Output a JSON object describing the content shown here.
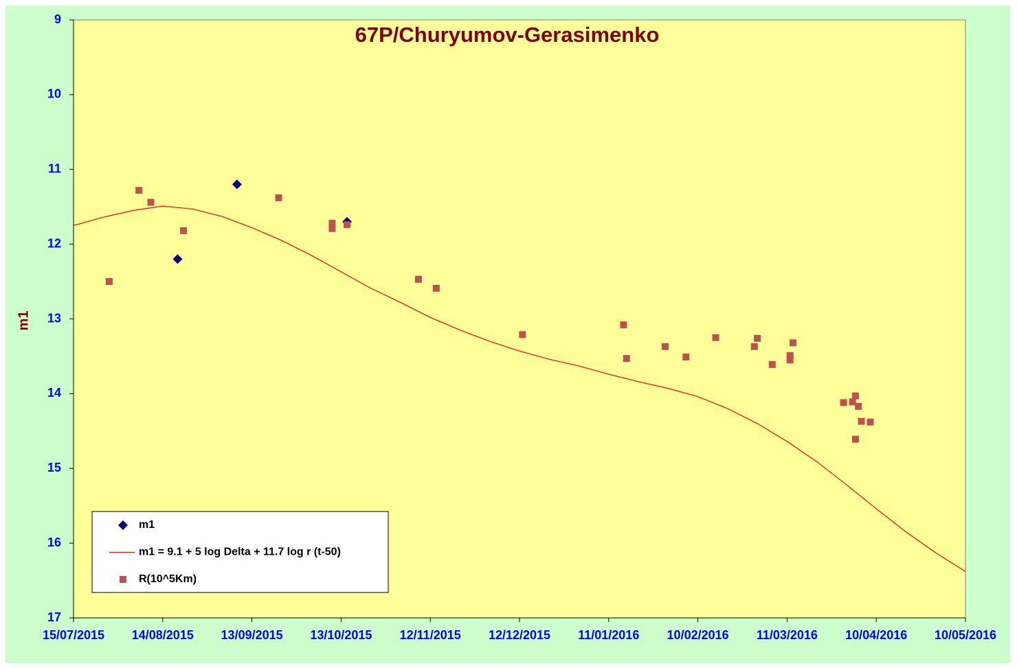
{
  "chart_data": {
    "type": "scatter",
    "title": "67P/Churyumov-Gerasimenko",
    "y_label": "m1",
    "xlim": [
      "2015-07-15",
      "2016-05-10"
    ],
    "xticks": [
      {
        "value": "2015-07-15",
        "label": "15/07/2015"
      },
      {
        "value": "2015-08-14",
        "label": "14/08/2015"
      },
      {
        "value": "2015-09-13",
        "label": "13/09/2015"
      },
      {
        "value": "2015-10-13",
        "label": "13/10/2015"
      },
      {
        "value": "2015-11-12",
        "label": "12/11/2015"
      },
      {
        "value": "2015-12-12",
        "label": "12/12/2015"
      },
      {
        "value": "2016-01-11",
        "label": "11/01/2016"
      },
      {
        "value": "2016-02-10",
        "label": "10/02/2016"
      },
      {
        "value": "2016-03-11",
        "label": "11/03/2016"
      },
      {
        "value": "2016-04-10",
        "label": "10/04/2016"
      },
      {
        "value": "2016-05-10",
        "label": "10/05/2016"
      }
    ],
    "ylim": [
      17,
      9
    ],
    "yticks": [
      9,
      10,
      11,
      12,
      13,
      14,
      15,
      16,
      17
    ],
    "legend": "lower left",
    "plot_color": "#ffff99",
    "background_color": "#ccffcc",
    "series": [
      {
        "name": "m1",
        "type": "scatter",
        "marker": "diamond",
        "color": "#000080",
        "x": [
          "2015-08-19",
          "2015-09-08",
          "2015-10-15"
        ],
        "values": [
          12.2,
          11.2,
          11.7
        ]
      },
      {
        "name": "m1 = 9.1 + 5 log Delta + 11.7 log r (t-50)",
        "type": "line",
        "color": "#ff0000",
        "x": [
          "2015-07-15",
          "2015-07-25",
          "2015-08-04",
          "2015-08-14",
          "2015-08-24",
          "2015-09-03",
          "2015-09-13",
          "2015-09-23",
          "2015-10-03",
          "2015-10-13",
          "2015-10-23",
          "2015-11-02",
          "2015-11-12",
          "2015-11-22",
          "2015-12-02",
          "2015-12-12",
          "2015-12-22",
          "2016-01-01",
          "2016-01-11",
          "2016-01-21",
          "2016-01-31",
          "2016-02-10",
          "2016-02-20",
          "2016-03-01",
          "2016-03-11",
          "2016-03-21",
          "2016-03-31",
          "2016-04-10",
          "2016-04-20",
          "2016-04-30",
          "2016-05-10"
        ],
        "values": [
          11.75,
          11.64,
          11.55,
          11.49,
          11.53,
          11.63,
          11.78,
          11.95,
          12.15,
          12.37,
          12.59,
          12.78,
          12.98,
          13.15,
          13.3,
          13.43,
          13.54,
          13.63,
          13.74,
          13.84,
          13.93,
          14.04,
          14.2,
          14.4,
          14.64,
          14.91,
          15.22,
          15.54,
          15.85,
          16.13,
          16.38
        ]
      },
      {
        "name": "R(10^5Km)",
        "type": "scatter",
        "marker": "square",
        "color": "#c0504d",
        "x": [
          "2015-07-27",
          "2015-08-06",
          "2015-08-10",
          "2015-08-21",
          "2015-09-22",
          "2015-10-10",
          "2015-10-10",
          "2015-10-15",
          "2015-11-08",
          "2015-11-14",
          "2015-12-13",
          "2016-01-16",
          "2016-01-17",
          "2016-01-30",
          "2016-02-06",
          "2016-02-16",
          "2016-02-29",
          "2016-03-01",
          "2016-03-06",
          "2016-03-12",
          "2016-03-12",
          "2016-03-13",
          "2016-03-30",
          "2016-04-02",
          "2016-04-03",
          "2016-04-03",
          "2016-04-04",
          "2016-04-05",
          "2016-04-08"
        ],
        "values": [
          12.5,
          11.28,
          11.44,
          11.82,
          11.38,
          11.72,
          11.79,
          11.74,
          12.47,
          12.59,
          13.21,
          13.08,
          13.53,
          13.37,
          13.51,
          13.25,
          13.37,
          13.26,
          13.61,
          13.55,
          13.49,
          13.32,
          14.12,
          14.11,
          14.03,
          14.61,
          14.17,
          14.37,
          14.38
        ]
      }
    ]
  }
}
